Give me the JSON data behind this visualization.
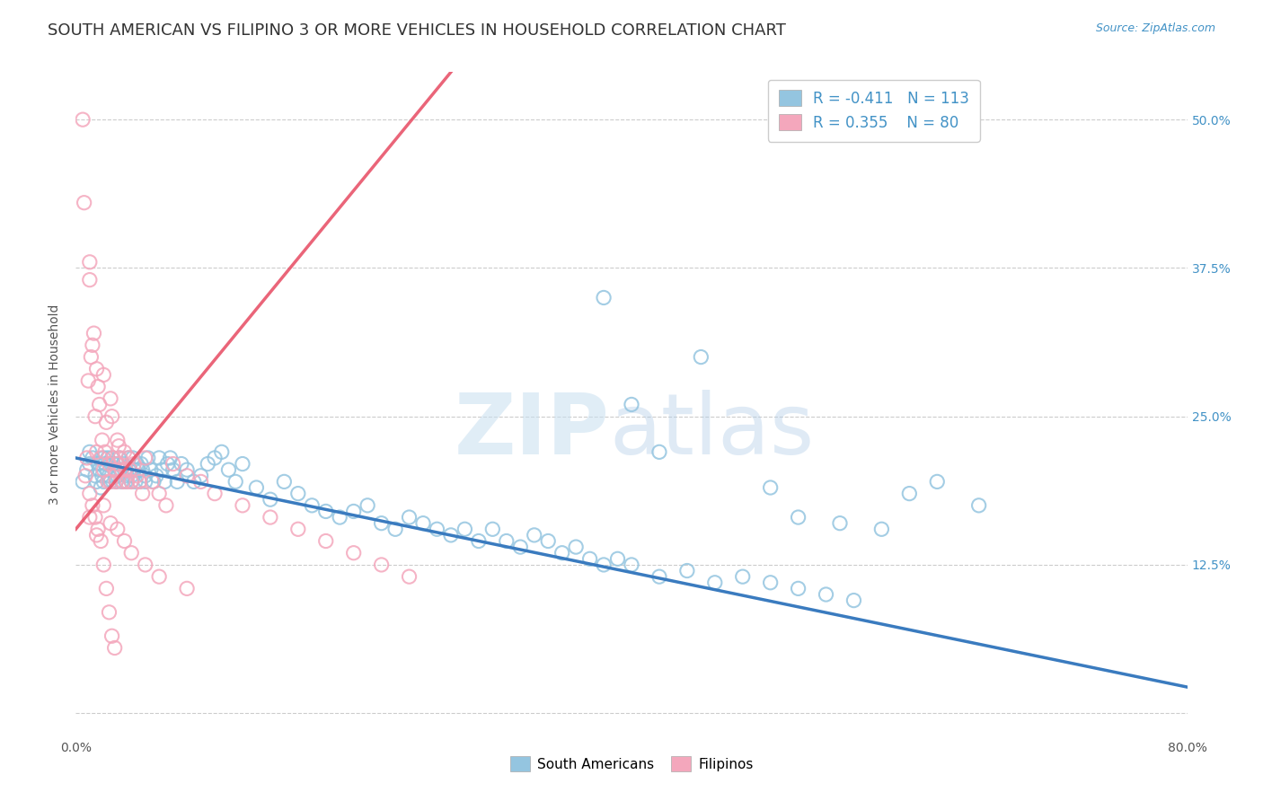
{
  "title": "SOUTH AMERICAN VS FILIPINO 3 OR MORE VEHICLES IN HOUSEHOLD CORRELATION CHART",
  "source": "Source: ZipAtlas.com",
  "ylabel": "3 or more Vehicles in Household",
  "xlim": [
    0.0,
    0.8
  ],
  "ylim": [
    -0.02,
    0.54
  ],
  "xticks": [
    0.0,
    0.1,
    0.2,
    0.3,
    0.4,
    0.5,
    0.6,
    0.7,
    0.8
  ],
  "xticklabels": [
    "0.0%",
    "",
    "",
    "",
    "",
    "",
    "",
    "",
    "80.0%"
  ],
  "yticks": [
    0.0,
    0.125,
    0.25,
    0.375,
    0.5
  ],
  "ytick_right_labels": [
    "",
    "12.5%",
    "25.0%",
    "37.5%",
    "50.0%"
  ],
  "R_blue": -0.411,
  "N_blue": 113,
  "R_pink": 0.355,
  "N_pink": 80,
  "blue_color": "#94c5e0",
  "pink_color": "#f4a7bc",
  "blue_line_color": "#3a7bbf",
  "pink_line_color": "#e8546a",
  "legend_blue_label": "South Americans",
  "legend_pink_label": "Filipinos",
  "blue_line_x0": 0.0,
  "blue_line_y0": 0.215,
  "blue_line_x1": 0.8,
  "blue_line_y1": 0.022,
  "pink_line_x0": 0.0,
  "pink_line_y0": 0.155,
  "pink_line_x1": 0.27,
  "pink_line_y1": 0.54,
  "watermark_zip": "ZIP",
  "watermark_atlas": "atlas",
  "title_fontsize": 13,
  "axis_label_fontsize": 10,
  "tick_fontsize": 10,
  "legend_fontsize": 11,
  "source_fontsize": 9,
  "blue_x": [
    0.005,
    0.008,
    0.01,
    0.01,
    0.012,
    0.014,
    0.015,
    0.016,
    0.017,
    0.018,
    0.019,
    0.02,
    0.02,
    0.021,
    0.022,
    0.023,
    0.024,
    0.025,
    0.026,
    0.027,
    0.028,
    0.029,
    0.03,
    0.03,
    0.031,
    0.032,
    0.033,
    0.034,
    0.035,
    0.036,
    0.037,
    0.038,
    0.039,
    0.04,
    0.04,
    0.041,
    0.042,
    0.043,
    0.044,
    0.045,
    0.046,
    0.047,
    0.048,
    0.05,
    0.05,
    0.052,
    0.054,
    0.056,
    0.058,
    0.06,
    0.062,
    0.064,
    0.066,
    0.068,
    0.07,
    0.073,
    0.076,
    0.08,
    0.085,
    0.09,
    0.095,
    0.1,
    0.105,
    0.11,
    0.115,
    0.12,
    0.13,
    0.14,
    0.15,
    0.16,
    0.17,
    0.18,
    0.19,
    0.2,
    0.21,
    0.22,
    0.23,
    0.24,
    0.25,
    0.26,
    0.27,
    0.28,
    0.29,
    0.3,
    0.31,
    0.32,
    0.33,
    0.34,
    0.35,
    0.36,
    0.37,
    0.38,
    0.39,
    0.4,
    0.42,
    0.44,
    0.46,
    0.48,
    0.5,
    0.52,
    0.54,
    0.56,
    0.38,
    0.4,
    0.42,
    0.45,
    0.5,
    0.55,
    0.6,
    0.65,
    0.52,
    0.58,
    0.62
  ],
  "blue_y": [
    0.195,
    0.205,
    0.21,
    0.22,
    0.215,
    0.2,
    0.195,
    0.21,
    0.205,
    0.19,
    0.2,
    0.195,
    0.215,
    0.21,
    0.205,
    0.215,
    0.2,
    0.195,
    0.215,
    0.21,
    0.205,
    0.195,
    0.2,
    0.21,
    0.215,
    0.205,
    0.195,
    0.21,
    0.205,
    0.195,
    0.2,
    0.215,
    0.205,
    0.2,
    0.195,
    0.215,
    0.205,
    0.195,
    0.21,
    0.205,
    0.195,
    0.21,
    0.205,
    0.2,
    0.195,
    0.215,
    0.205,
    0.195,
    0.2,
    0.215,
    0.205,
    0.195,
    0.21,
    0.215,
    0.205,
    0.195,
    0.21,
    0.205,
    0.195,
    0.2,
    0.21,
    0.215,
    0.22,
    0.205,
    0.195,
    0.21,
    0.19,
    0.18,
    0.195,
    0.185,
    0.175,
    0.17,
    0.165,
    0.17,
    0.175,
    0.16,
    0.155,
    0.165,
    0.16,
    0.155,
    0.15,
    0.155,
    0.145,
    0.155,
    0.145,
    0.14,
    0.15,
    0.145,
    0.135,
    0.14,
    0.13,
    0.125,
    0.13,
    0.125,
    0.115,
    0.12,
    0.11,
    0.115,
    0.11,
    0.105,
    0.1,
    0.095,
    0.35,
    0.26,
    0.22,
    0.3,
    0.19,
    0.16,
    0.185,
    0.175,
    0.165,
    0.155,
    0.195
  ],
  "pink_x": [
    0.005,
    0.006,
    0.007,
    0.008,
    0.009,
    0.01,
    0.01,
    0.011,
    0.012,
    0.013,
    0.014,
    0.015,
    0.015,
    0.016,
    0.017,
    0.018,
    0.019,
    0.02,
    0.02,
    0.021,
    0.022,
    0.023,
    0.024,
    0.025,
    0.025,
    0.026,
    0.027,
    0.028,
    0.029,
    0.03,
    0.03,
    0.031,
    0.032,
    0.033,
    0.034,
    0.035,
    0.036,
    0.037,
    0.038,
    0.039,
    0.04,
    0.042,
    0.044,
    0.046,
    0.048,
    0.05,
    0.055,
    0.06,
    0.065,
    0.07,
    0.08,
    0.09,
    0.1,
    0.12,
    0.14,
    0.16,
    0.18,
    0.2,
    0.22,
    0.24,
    0.01,
    0.015,
    0.02,
    0.025,
    0.03,
    0.035,
    0.04,
    0.05,
    0.06,
    0.08,
    0.01,
    0.012,
    0.014,
    0.016,
    0.018,
    0.02,
    0.022,
    0.024,
    0.026,
    0.028
  ],
  "pink_y": [
    0.5,
    0.43,
    0.2,
    0.215,
    0.28,
    0.185,
    0.38,
    0.3,
    0.31,
    0.32,
    0.25,
    0.29,
    0.22,
    0.275,
    0.26,
    0.215,
    0.23,
    0.285,
    0.205,
    0.22,
    0.245,
    0.195,
    0.21,
    0.265,
    0.195,
    0.25,
    0.215,
    0.205,
    0.195,
    0.23,
    0.21,
    0.225,
    0.215,
    0.205,
    0.195,
    0.22,
    0.205,
    0.195,
    0.215,
    0.205,
    0.195,
    0.21,
    0.2,
    0.195,
    0.185,
    0.215,
    0.195,
    0.185,
    0.175,
    0.21,
    0.2,
    0.195,
    0.185,
    0.175,
    0.165,
    0.155,
    0.145,
    0.135,
    0.125,
    0.115,
    0.165,
    0.15,
    0.175,
    0.16,
    0.155,
    0.145,
    0.135,
    0.125,
    0.115,
    0.105,
    0.365,
    0.175,
    0.165,
    0.155,
    0.145,
    0.125,
    0.105,
    0.085,
    0.065,
    0.055
  ]
}
